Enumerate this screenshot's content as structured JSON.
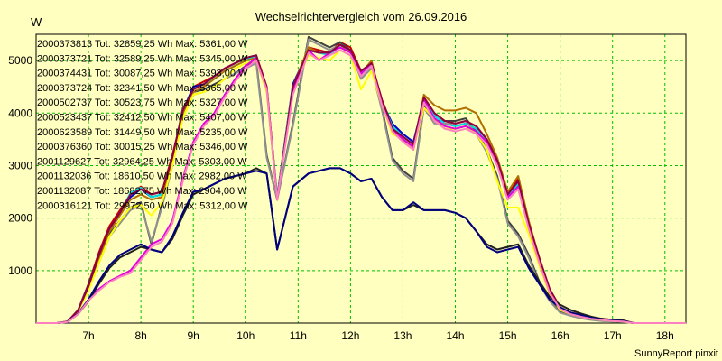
{
  "chart_data": {
    "type": "line",
    "title": "Wechselrichtervergleich vom 26.09.2016",
    "ylabel": "W",
    "xlabel": "",
    "footer": "SunnyReport pinxit",
    "ylim": [
      0,
      5500
    ],
    "xlim": [
      6.0,
      18.4
    ],
    "yticks": [
      1000,
      2000,
      3000,
      4000,
      5000
    ],
    "xticks": [
      {
        "t": 7.0,
        "label": "7h"
      },
      {
        "t": 8.0,
        "label": "8h"
      },
      {
        "t": 9.0,
        "label": "9h"
      },
      {
        "t": 10.0,
        "label": "10h"
      },
      {
        "t": 11.0,
        "label": "11h"
      },
      {
        "t": 12.0,
        "label": "12h"
      },
      {
        "t": 13.0,
        "label": "13h"
      },
      {
        "t": 14.0,
        "label": "14h"
      },
      {
        "t": 15.0,
        "label": "15h"
      },
      {
        "t": 16.0,
        "label": "16h"
      },
      {
        "t": 17.0,
        "label": "17h"
      },
      {
        "t": 18.0,
        "label": "18h"
      }
    ],
    "grid": true,
    "legend_position": "top-left",
    "x": [
      6.0,
      6.4,
      6.6,
      6.8,
      7.0,
      7.2,
      7.4,
      7.6,
      7.8,
      8.0,
      8.2,
      8.4,
      8.6,
      8.8,
      9.0,
      9.2,
      9.4,
      9.6,
      9.8,
      10.0,
      10.2,
      10.4,
      10.6,
      10.9,
      11.2,
      11.4,
      11.6,
      11.8,
      12.0,
      12.2,
      12.4,
      12.6,
      12.8,
      13.0,
      13.2,
      13.4,
      13.6,
      13.8,
      14.0,
      14.2,
      14.4,
      14.6,
      14.8,
      15.0,
      15.2,
      15.4,
      15.6,
      15.8,
      16.0,
      16.2,
      16.4,
      16.6,
      16.8,
      17.0,
      17.2,
      17.4,
      17.6,
      17.8,
      18.0,
      18.4
    ],
    "series": [
      {
        "name": "2000373813 Tot: 32859,25 Wh Max: 5361,00 W",
        "color": "#cc0000",
        "values": [
          0,
          0,
          30,
          250,
          750,
          1350,
          1850,
          2150,
          2450,
          2600,
          2450,
          2500,
          3200,
          4000,
          4500,
          4600,
          4700,
          4850,
          4950,
          5050,
          5100,
          4500,
          2400,
          4500,
          5250,
          5200,
          5150,
          5350,
          5250,
          4800,
          4950,
          4250,
          3750,
          3550,
          3400,
          4300,
          4000,
          3850,
          3800,
          3850,
          3750,
          3500,
          3100,
          2450,
          2750,
          1900,
          1250,
          650,
          300,
          200,
          150,
          100,
          80,
          60,
          50,
          0,
          0,
          0,
          0,
          0
        ]
      },
      {
        "name": "2000373721 Tot: 32589,25 Wh Max: 5345,00 W",
        "color": "#0000cc",
        "values": [
          0,
          0,
          30,
          240,
          720,
          1300,
          1800,
          2100,
          2400,
          2550,
          2400,
          2450,
          3150,
          4050,
          4500,
          4550,
          4700,
          4850,
          4950,
          5050,
          5100,
          4450,
          2400,
          4550,
          5200,
          5150,
          5150,
          5300,
          5200,
          4750,
          4950,
          4200,
          3800,
          3600,
          3450,
          4250,
          3950,
          3800,
          3750,
          3800,
          3700,
          3450,
          3050,
          2400,
          2700,
          1850,
          1200,
          600,
          280,
          180,
          130,
          90,
          70,
          50,
          40,
          0,
          0,
          0,
          0,
          0
        ]
      },
      {
        "name": "2000374431 Tot: 30087,25 Wh Max: 5393,00 W",
        "color": "#404040",
        "values": [
          0,
          0,
          30,
          220,
          680,
          1200,
          1700,
          1950,
          2200,
          2300,
          1500,
          2250,
          3100,
          4100,
          4400,
          4450,
          4550,
          4650,
          4750,
          4900,
          5000,
          3200,
          2350,
          3800,
          5450,
          5350,
          5250,
          5350,
          5200,
          4700,
          4900,
          4100,
          3150,
          2900,
          2750,
          4150,
          3850,
          3850,
          3850,
          3900,
          3650,
          3300,
          2800,
          1950,
          1700,
          1300,
          800,
          450,
          220,
          150,
          100,
          70,
          50,
          40,
          30,
          0,
          0,
          0,
          0,
          0
        ]
      },
      {
        "name": "2000373724 Tot: 32341,50 Wh Max: 5365,00 W",
        "color": "#00e0e0",
        "values": [
          0,
          0,
          30,
          240,
          700,
          1280,
          1780,
          2080,
          2480,
          2580,
          2400,
          2450,
          3150,
          4000,
          4450,
          4550,
          4650,
          4800,
          4900,
          5000,
          5100,
          4450,
          2400,
          4500,
          5200,
          5150,
          5100,
          5300,
          5200,
          4700,
          4950,
          4200,
          3750,
          3550,
          3400,
          4250,
          3950,
          3800,
          3750,
          3800,
          3700,
          3450,
          3050,
          2400,
          2650,
          1850,
          1200,
          600,
          280,
          180,
          130,
          90,
          70,
          50,
          40,
          0,
          0,
          0,
          0,
          0
        ]
      },
      {
        "name": "2000502737 Tot: 30523,75 Wh Max: 5327,00 W",
        "color": "#909090",
        "values": [
          0,
          0,
          30,
          220,
          650,
          1150,
          1650,
          1900,
          2150,
          2250,
          1550,
          2200,
          3000,
          4050,
          4350,
          4400,
          4500,
          4650,
          4750,
          4850,
          4950,
          3150,
          2350,
          3750,
          5400,
          5300,
          5200,
          5300,
          5150,
          4650,
          4850,
          4050,
          3100,
          2850,
          2700,
          4100,
          3800,
          3800,
          3800,
          3850,
          3600,
          3250,
          2750,
          1900,
          1650,
          1250,
          750,
          420,
          200,
          140,
          90,
          60,
          40,
          30,
          20,
          0,
          0,
          0,
          0,
          0
        ]
      },
      {
        "name": "2000523437 Tot: 32412,50 Wh Max: 5407,00 W",
        "color": "#b07000",
        "values": [
          0,
          0,
          30,
          230,
          680,
          1250,
          1750,
          2050,
          2350,
          2450,
          2350,
          2400,
          3100,
          4000,
          4400,
          4500,
          4650,
          4800,
          4900,
          5000,
          5050,
          4450,
          2350,
          4500,
          5250,
          5150,
          5150,
          5300,
          5200,
          4750,
          5000,
          4200,
          3650,
          3500,
          3350,
          4350,
          4150,
          4050,
          4050,
          4100,
          4000,
          3600,
          3150,
          2500,
          2800,
          1950,
          1250,
          650,
          300,
          200,
          150,
          100,
          80,
          60,
          50,
          0,
          0,
          0,
          0,
          0
        ]
      },
      {
        "name": "2000623589 Tot: 31449,50 Wh Max: 5235,00 W",
        "color": "#ffff00",
        "values": [
          0,
          0,
          30,
          220,
          620,
          1150,
          1650,
          1950,
          2200,
          2250,
          2050,
          2300,
          3000,
          3900,
          4350,
          4400,
          4500,
          4650,
          4850,
          4950,
          5000,
          4400,
          2350,
          4450,
          5100,
          5050,
          5000,
          5200,
          5100,
          4450,
          4800,
          4150,
          3600,
          3500,
          3300,
          4100,
          3900,
          3700,
          3700,
          3750,
          3600,
          3300,
          2700,
          2200,
          2200,
          1700,
          1100,
          550,
          250,
          170,
          120,
          80,
          60,
          40,
          30,
          0,
          0,
          0,
          0,
          0
        ]
      },
      {
        "name": "2000376360 Tot: 30015,25 Wh Max: 5346,00 W",
        "color": "#e000e0",
        "values": [
          0,
          0,
          20,
          180,
          450,
          650,
          800,
          900,
          1000,
          1250,
          1500,
          1600,
          1950,
          2750,
          3450,
          3800,
          4000,
          4350,
          4650,
          4900,
          5050,
          4500,
          2350,
          4400,
          5200,
          5000,
          5150,
          5250,
          5150,
          4750,
          4950,
          4200,
          3700,
          3500,
          3350,
          4250,
          3900,
          3750,
          3700,
          3750,
          3650,
          3450,
          3050,
          2400,
          2600,
          1850,
          1200,
          600,
          280,
          180,
          130,
          90,
          70,
          50,
          40,
          0,
          0,
          0,
          0,
          0
        ]
      },
      {
        "name": "2001129627 Tot: 32964,25 Wh Max: 5303,00 W",
        "color": "#900040",
        "values": [
          0,
          0,
          30,
          240,
          700,
          1300,
          1800,
          2100,
          2450,
          2550,
          2450,
          2500,
          3150,
          4050,
          4450,
          4550,
          4700,
          4850,
          4950,
          5050,
          5100,
          4500,
          2350,
          4500,
          5200,
          5150,
          5150,
          5300,
          5200,
          4800,
          4950,
          4250,
          3700,
          3550,
          3400,
          4300,
          4000,
          3850,
          3800,
          3850,
          3750,
          3500,
          3100,
          2450,
          2700,
          1900,
          1250,
          650,
          300,
          200,
          150,
          100,
          80,
          60,
          50,
          0,
          0,
          0,
          0,
          0
        ]
      },
      {
        "name": "2001132036 Tot: 18610,50 Wh Max: 2982,00 W",
        "color": "#202020",
        "values": [
          0,
          0,
          20,
          170,
          420,
          750,
          1050,
          1250,
          1350,
          1450,
          1400,
          1350,
          1600,
          2050,
          2450,
          2550,
          2650,
          2750,
          2800,
          2850,
          2950,
          2850,
          1400,
          2600,
          2850,
          2900,
          2950,
          2950,
          2850,
          2700,
          2750,
          2400,
          2150,
          2150,
          2250,
          2150,
          2150,
          2150,
          2100,
          2000,
          1750,
          1500,
          1400,
          1450,
          1500,
          1100,
          800,
          500,
          350,
          250,
          180,
          120,
          80,
          60,
          50,
          0,
          0,
          0,
          0,
          0
        ]
      },
      {
        "name": "2001132087 Tot: 18682,75 Wh Max: 2904,00 W",
        "color": "#000080",
        "values": [
          0,
          0,
          20,
          180,
          450,
          800,
          1100,
          1300,
          1400,
          1500,
          1400,
          1350,
          1650,
          2100,
          2500,
          2550,
          2650,
          2750,
          2800,
          2850,
          2900,
          2850,
          1400,
          2600,
          2850,
          2900,
          2950,
          2950,
          2850,
          2700,
          2750,
          2400,
          2150,
          2150,
          2300,
          2150,
          2150,
          2150,
          2100,
          2000,
          1750,
          1450,
          1350,
          1400,
          1450,
          1050,
          750,
          450,
          300,
          200,
          150,
          100,
          70,
          50,
          40,
          0,
          0,
          0,
          0,
          0
        ]
      },
      {
        "name": "2000316121 Tot: 29972,50 Wh Max: 5312,00 W",
        "color": "#ff80c0",
        "values": [
          0,
          0,
          20,
          170,
          430,
          620,
          780,
          880,
          950,
          1200,
          1450,
          1550,
          1900,
          2700,
          3400,
          3750,
          3950,
          4300,
          4600,
          4850,
          5000,
          4450,
          2350,
          4350,
          5150,
          5000,
          5100,
          5200,
          5100,
          4700,
          4900,
          4150,
          3650,
          3450,
          3300,
          4200,
          3850,
          3700,
          3650,
          3700,
          3600,
          3400,
          3000,
          2350,
          2550,
          1800,
          1150,
          580,
          270,
          170,
          120,
          80,
          60,
          40,
          30,
          0,
          0,
          0,
          0,
          0
        ]
      }
    ]
  }
}
